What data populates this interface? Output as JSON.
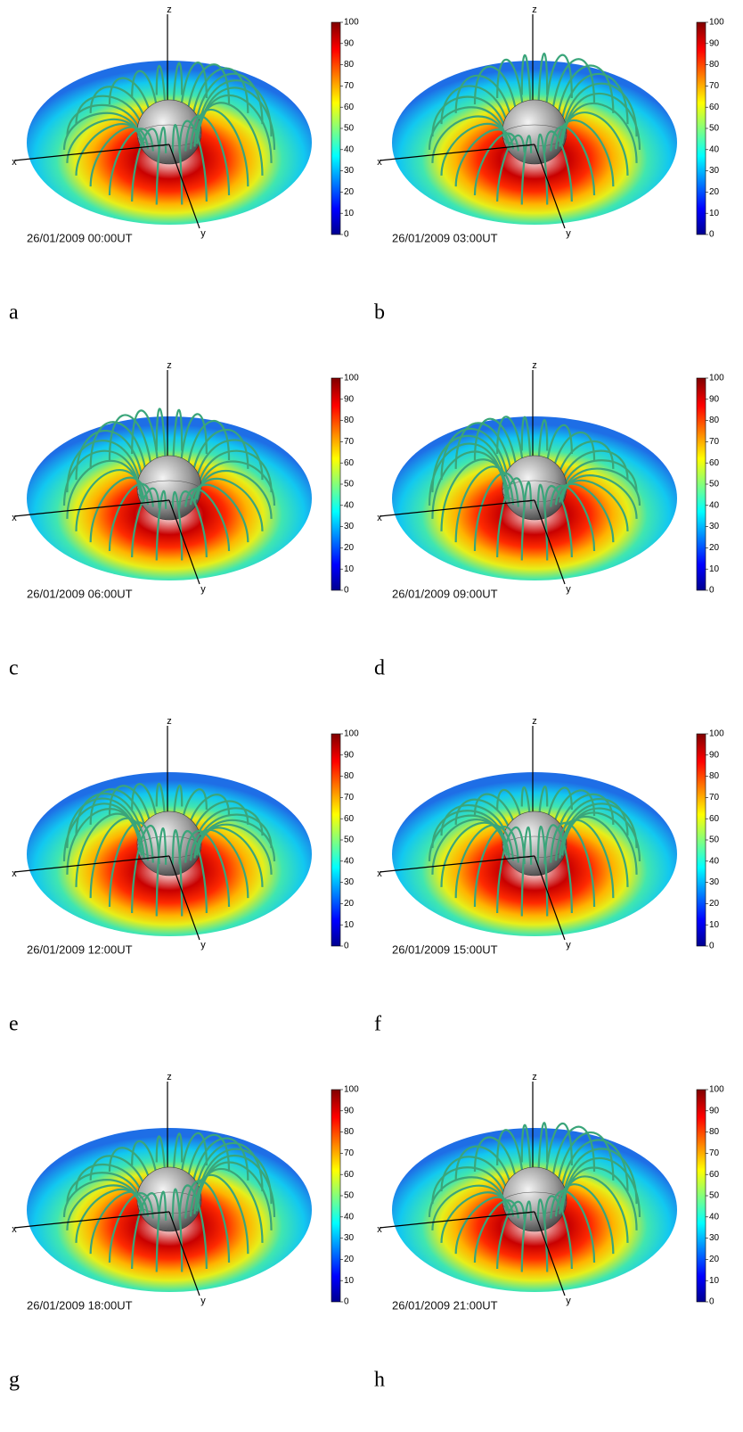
{
  "panels": [
    {
      "letter": "a",
      "timestamp": "26/01/2009 00:00UT"
    },
    {
      "letter": "b",
      "timestamp": "26/01/2009 03:00UT"
    },
    {
      "letter": "c",
      "timestamp": "26/01/2009 06:00UT"
    },
    {
      "letter": "d",
      "timestamp": "26/01/2009 09:00UT"
    },
    {
      "letter": "e",
      "timestamp": "26/01/2009 12:00UT"
    },
    {
      "letter": "f",
      "timestamp": "26/01/2009 15:00UT"
    },
    {
      "letter": "g",
      "timestamp": "26/01/2009 18:00UT"
    },
    {
      "letter": "h",
      "timestamp": "26/01/2009 21:00UT"
    }
  ],
  "axes": {
    "x": "x",
    "y": "y",
    "z": "z"
  },
  "colorbar": {
    "ticks": [
      0,
      10,
      20,
      30,
      40,
      50,
      60,
      70,
      80,
      90,
      100
    ]
  }
}
